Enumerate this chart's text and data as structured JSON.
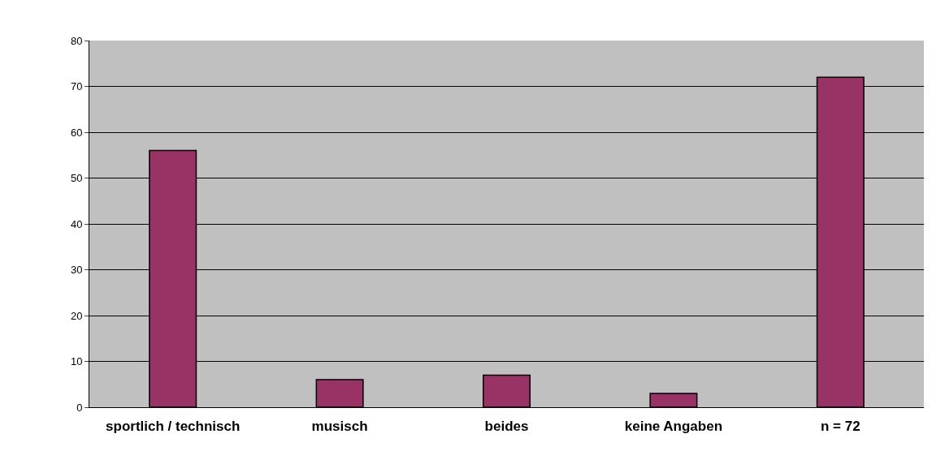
{
  "chart_data": {
    "type": "bar",
    "categories": [
      "sportlich / technisch",
      "musisch",
      "beides",
      "keine Angaben",
      "n = 72"
    ],
    "values": [
      56,
      6,
      7,
      3,
      72
    ],
    "color": "#993366",
    "ylim": [
      0,
      80
    ],
    "yticks": [
      0,
      10,
      20,
      30,
      40,
      50,
      60,
      70,
      80
    ],
    "grid": "y"
  }
}
